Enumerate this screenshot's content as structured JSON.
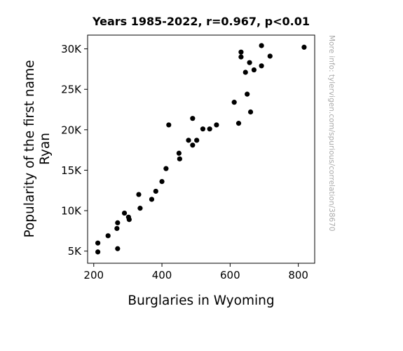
{
  "chart_data": {
    "type": "scatter",
    "title": "Years 1985-2022, r=0.967, p<0.01",
    "xlabel": "Burglaries in Wyoming",
    "ylabel_line1": "Popularity of the first name",
    "ylabel_line2": "Ryan",
    "watermark": "More info: tylervigen.com/spurious/correlation/38670",
    "xlim": [
      182,
      848
    ],
    "ylim": [
      3500,
      31700
    ],
    "x_ticks": [
      {
        "value": 200,
        "label": "200"
      },
      {
        "value": 400,
        "label": "400"
      },
      {
        "value": 600,
        "label": "600"
      },
      {
        "value": 800,
        "label": "800"
      }
    ],
    "y_ticks": [
      {
        "value": 5000,
        "label": "5K"
      },
      {
        "value": 10000,
        "label": "10K"
      },
      {
        "value": 15000,
        "label": "15K"
      },
      {
        "value": 20000,
        "label": "20K"
      },
      {
        "value": 25000,
        "label": "25K"
      },
      {
        "value": 30000,
        "label": "30K"
      }
    ],
    "grid": false,
    "marker_color": "#000000",
    "points": [
      {
        "x": 817,
        "y": 30200
      },
      {
        "x": 692,
        "y": 30400
      },
      {
        "x": 717,
        "y": 29100
      },
      {
        "x": 632,
        "y": 29600
      },
      {
        "x": 632,
        "y": 29000
      },
      {
        "x": 692,
        "y": 27900
      },
      {
        "x": 657,
        "y": 28300
      },
      {
        "x": 645,
        "y": 27100
      },
      {
        "x": 670,
        "y": 27400
      },
      {
        "x": 650,
        "y": 24400
      },
      {
        "x": 612,
        "y": 23400
      },
      {
        "x": 660,
        "y": 22200
      },
      {
        "x": 625,
        "y": 20800
      },
      {
        "x": 490,
        "y": 21400
      },
      {
        "x": 420,
        "y": 20600
      },
      {
        "x": 560,
        "y": 20600
      },
      {
        "x": 520,
        "y": 20100
      },
      {
        "x": 540,
        "y": 20100
      },
      {
        "x": 478,
        "y": 18700
      },
      {
        "x": 502,
        "y": 18700
      },
      {
        "x": 490,
        "y": 18100
      },
      {
        "x": 450,
        "y": 17100
      },
      {
        "x": 452,
        "y": 16400
      },
      {
        "x": 412,
        "y": 15200
      },
      {
        "x": 400,
        "y": 13600
      },
      {
        "x": 382,
        "y": 12400
      },
      {
        "x": 332,
        "y": 12000
      },
      {
        "x": 370,
        "y": 11400
      },
      {
        "x": 336,
        "y": 10300
      },
      {
        "x": 290,
        "y": 9700
      },
      {
        "x": 302,
        "y": 9200
      },
      {
        "x": 304,
        "y": 8900
      },
      {
        "x": 270,
        "y": 8500
      },
      {
        "x": 268,
        "y": 7800
      },
      {
        "x": 242,
        "y": 6900
      },
      {
        "x": 212,
        "y": 6000
      },
      {
        "x": 212,
        "y": 4900
      },
      {
        "x": 270,
        "y": 5300
      }
    ]
  }
}
